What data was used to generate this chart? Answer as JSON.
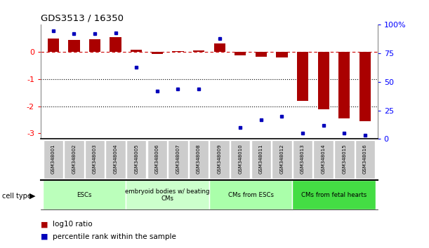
{
  "title": "GDS3513 / 16350",
  "samples": [
    "GSM348001",
    "GSM348002",
    "GSM348003",
    "GSM348004",
    "GSM348005",
    "GSM348006",
    "GSM348007",
    "GSM348008",
    "GSM348009",
    "GSM348010",
    "GSM348011",
    "GSM348012",
    "GSM348013",
    "GSM348014",
    "GSM348015",
    "GSM348016"
  ],
  "log10_ratio": [
    0.5,
    0.45,
    0.48,
    0.55,
    0.07,
    -0.08,
    0.04,
    0.06,
    0.32,
    -0.13,
    -0.17,
    -0.2,
    -1.8,
    -2.1,
    -2.45,
    -2.55
  ],
  "percentile_rank": [
    95,
    92,
    92,
    93,
    63,
    42,
    44,
    44,
    88,
    10,
    17,
    20,
    5,
    12,
    5,
    3
  ],
  "cell_types": [
    {
      "label": "ESCs",
      "start": 0,
      "end": 3,
      "color": "#bbffbb"
    },
    {
      "label": "embryoid bodies w/ beating\nCMs",
      "start": 4,
      "end": 7,
      "color": "#ccffcc"
    },
    {
      "label": "CMs from ESCs",
      "start": 8,
      "end": 11,
      "color": "#aaffaa"
    },
    {
      "label": "CMs from fetal hearts",
      "start": 12,
      "end": 15,
      "color": "#44dd44"
    }
  ],
  "bar_color_red": "#aa0000",
  "dot_color_blue": "#0000bb",
  "ylim_left": [
    -3.2,
    1.0
  ],
  "ylim_right": [
    0,
    100
  ],
  "yticks_left": [
    -3,
    -2,
    -1,
    0
  ],
  "ytick_labels_left": [
    "-3",
    "-2",
    "-1",
    "0"
  ],
  "yticks_right": [
    0,
    25,
    50,
    75,
    100
  ],
  "ytick_labels_right": [
    "0",
    "25",
    "50",
    "75",
    "100%"
  ],
  "dotted_lines": [
    -1.0,
    -2.0
  ],
  "background_color": "#ffffff",
  "sample_box_color": "#cccccc",
  "sample_divider_color": "#999999"
}
